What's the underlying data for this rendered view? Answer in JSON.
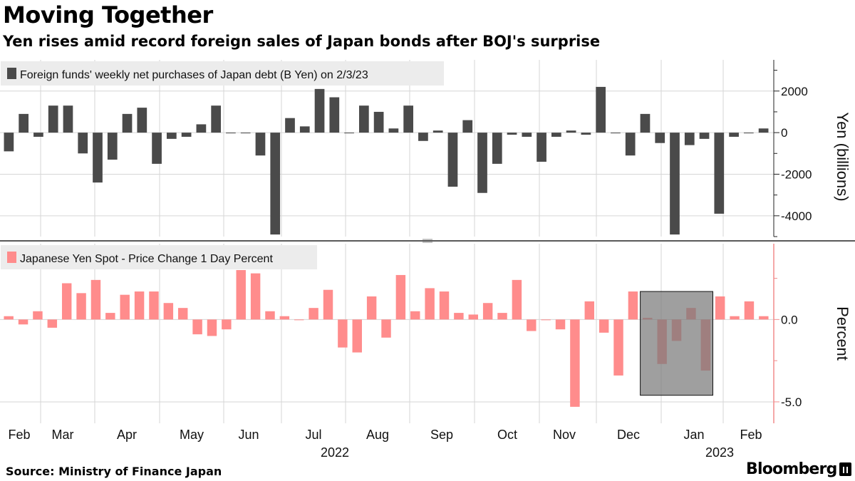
{
  "header": {
    "title": "Moving Together",
    "subtitle": "Yen rises amid record foreign sales of Japan bonds after BOJ's surprise"
  },
  "footer": {
    "source": "Source: Ministry of Finance Japan",
    "brand": "Bloomberg"
  },
  "colors": {
    "bonds_bar": "#4a4a4a",
    "yen_bar": "#ff8c8c",
    "yen_axis": "#f28c8c",
    "highlight_box": "#7a7a7a",
    "legend_bg": "#ececec",
    "grid": "#d6d6d6"
  },
  "x_axis": {
    "months": [
      "Feb",
      "Mar",
      "Apr",
      "May",
      "Jun",
      "Jul",
      "Aug",
      "Sep",
      "Oct",
      "Nov",
      "Dec",
      "Jan",
      "Feb"
    ],
    "years": [
      "2022",
      "2023"
    ]
  },
  "chart_data": [
    {
      "type": "bar",
      "legend": "Foreign funds' weekly net purchases of Japan debt (B Yen) on 2/3/23",
      "ylabel": "Yen (billions)",
      "ylim": [
        -5000,
        3500
      ],
      "yticks": [
        2000,
        0,
        -2000,
        -4000
      ],
      "grid": true,
      "legend_position": "top-left",
      "series": [
        {
          "name": "Foreign funds' weekly net purchases of Japan debt (B Yen) on 2/3/23",
          "values": [
            -900,
            900,
            -200,
            1300,
            1300,
            -1000,
            -2400,
            -1300,
            900,
            1200,
            -1500,
            -300,
            -200,
            400,
            1300,
            0,
            0,
            -1100,
            -4900,
            700,
            300,
            2100,
            1700,
            0,
            1300,
            1000,
            200,
            1300,
            -400,
            100,
            -2600,
            600,
            -2900,
            -1500,
            -100,
            -200,
            -1400,
            -200,
            100,
            -100,
            2200,
            0,
            -1100,
            900,
            -500,
            -4900,
            -600,
            -300,
            -3900,
            -200,
            0,
            200
          ]
        }
      ]
    },
    {
      "type": "bar",
      "legend": "Japanese Yen Spot - Price Change 1 Day Percent",
      "ylabel": "Percent",
      "ylim": [
        -6.3,
        4.6
      ],
      "yticks": [
        0.0,
        -5.0
      ],
      "grid": true,
      "legend_position": "top-left",
      "highlight": {
        "from_index": 44,
        "to_index": 48,
        "ymin": -4.6,
        "ymax": 1.7
      },
      "series": [
        {
          "name": "Japanese Yen Spot - Price Change 1 Day Percent",
          "values": [
            0.2,
            -0.3,
            0.5,
            -0.5,
            2.2,
            1.6,
            2.4,
            0.4,
            1.5,
            1.7,
            1.7,
            1.0,
            0.7,
            -0.9,
            -1.0,
            -0.6,
            3.0,
            2.8,
            0.5,
            0.2,
            0.0,
            0.7,
            1.8,
            -1.7,
            -2.0,
            1.4,
            -1.1,
            2.7,
            0.5,
            1.9,
            1.7,
            0.4,
            0.3,
            1.0,
            0.4,
            2.4,
            -0.7,
            0.0,
            -0.6,
            -5.3,
            1.1,
            -0.8,
            -3.4,
            1.7,
            0.1,
            -2.7,
            -1.3,
            0.7,
            -3.1,
            1.4,
            0.2,
            1.1,
            0.2
          ]
        }
      ]
    }
  ]
}
